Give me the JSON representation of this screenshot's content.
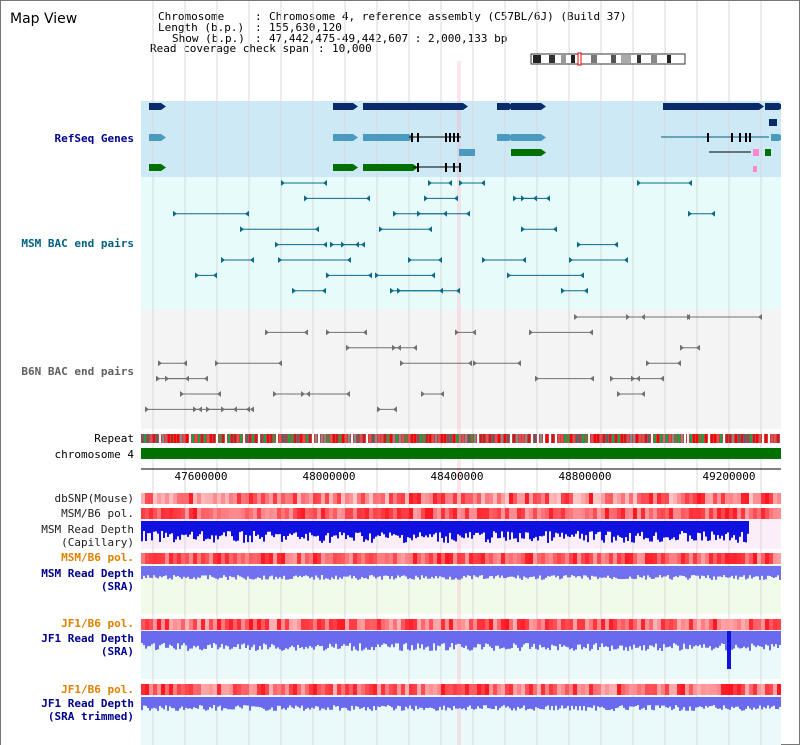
{
  "app": {
    "title": "Map View"
  },
  "info": {
    "chromosome_key": "Chromosome",
    "chromosome_val": "Chromosome 4, reference assembly (C57BL/6J) (Build 37)",
    "length_key": "Length (b.p.)",
    "length_val": "155,630,120",
    "show_key": "Show (b.p.)",
    "show_val": "47,442,475-49,442,607 : 2,000,133 bp",
    "coverage_key": "Read coverage check span",
    "coverage_val": "10,000"
  },
  "tracks": {
    "refseq": "RefSeq Genes",
    "msm_bac": "MSM BAC end pairs",
    "b6n_bac": "B6N BAC end pairs",
    "repeat": "Repeat",
    "chromosome": "chromosome 4",
    "dbsnp": "dbSNP(Mouse)",
    "msm_b6_pol_1": "MSM/B6 pol.",
    "msm_depth_cap_1": "MSM Read Depth",
    "msm_depth_cap_2": "(Capillary)",
    "msm_b6_pol_2": "MSM/B6 pol.",
    "msm_depth_sra_1": "MSM Read Depth",
    "msm_depth_sra_2": "(SRA)",
    "jf1_b6_pol_1": "JF1/B6 pol.",
    "jf1_depth_sra_1": "JF1 Read Depth",
    "jf1_depth_sra_2": "(SRA)",
    "jf1_b6_pol_2": "JF1/B6 pol.",
    "jf1_depth_trim_1": "JF1 Read Depth",
    "jf1_depth_trim_2": "(SRA trimmed)"
  },
  "axis": {
    "ticks": [
      "47600000",
      "48000000",
      "48400000",
      "48800000",
      "49200000"
    ],
    "range": [
      47442475,
      49442607
    ]
  },
  "colors": {
    "label_blue": "#00008b",
    "label_teal": "#006080",
    "label_grey": "#606060",
    "label_orange": "#e08000",
    "refseq_bg": "#cde9f6",
    "msm_bg": "#e8fbfb",
    "b6n_bg": "#f4f4f4",
    "chromosome": "#007000",
    "depth_blue": "#1010e0",
    "depth_violet": "#7070f0"
  }
}
